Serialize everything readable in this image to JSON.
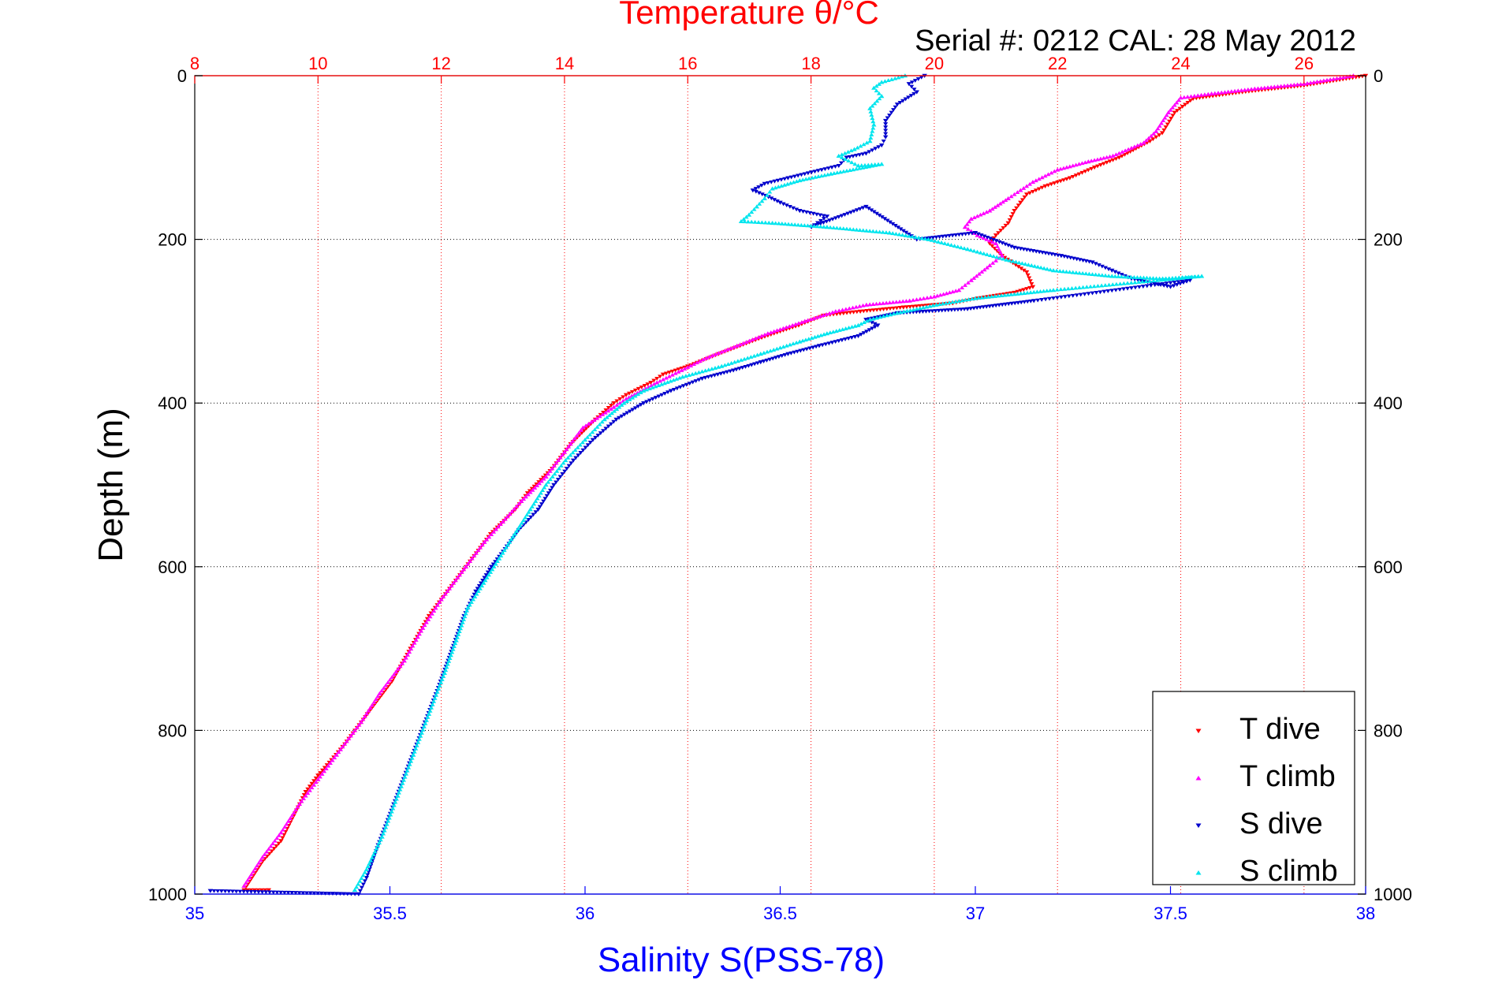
{
  "chart_data": {
    "type": "scatter",
    "title": "Temperature θ/°C",
    "subtitle": "Serial #: 0212  CAL: 28 May 2012",
    "xlabel": "Salinity S(PSS-78)",
    "ylabel": "Depth (m)",
    "x_top_label": "Temperature θ/°C",
    "salinity_range": [
      35,
      38
    ],
    "temperature_range": [
      8,
      27
    ],
    "depth_range": [
      0,
      1000
    ],
    "depth_axis_reversed": true,
    "salinity_ticks": [
      "35",
      "35.5",
      "36",
      "36.5",
      "37",
      "37.5",
      "38"
    ],
    "temperature_ticks": [
      "8",
      "10",
      "12",
      "14",
      "16",
      "18",
      "20",
      "22",
      "24",
      "26"
    ],
    "depth_ticks": [
      "0",
      "200",
      "400",
      "600",
      "800",
      "1000"
    ],
    "grid": true,
    "legend_position": "bottom-right",
    "colors": {
      "temperature_axis": "#ff0000",
      "salinity_axis": "#0000ff",
      "grid": "#000000",
      "t_dive": "#ff0000",
      "t_climb": "#ff00ff",
      "s_dive": "#0000cc",
      "s_climb": "#00e5ee"
    },
    "series": [
      {
        "name": "T dive",
        "axis": "temperature",
        "color": "#ff0000",
        "marker": "triangle-down",
        "points": [
          [
            27.0,
            0
          ],
          [
            26.0,
            12
          ],
          [
            25.0,
            20
          ],
          [
            24.2,
            28
          ],
          [
            23.9,
            45
          ],
          [
            23.7,
            70
          ],
          [
            23.5,
            80
          ],
          [
            23.0,
            100
          ],
          [
            22.6,
            112
          ],
          [
            22.2,
            125
          ],
          [
            21.8,
            135
          ],
          [
            21.5,
            145
          ],
          [
            21.4,
            155
          ],
          [
            21.3,
            165
          ],
          [
            21.2,
            180
          ],
          [
            21.0,
            195
          ],
          [
            20.9,
            205
          ],
          [
            21.1,
            220
          ],
          [
            21.5,
            240
          ],
          [
            21.6,
            258
          ],
          [
            21.3,
            265
          ],
          [
            20.7,
            272
          ],
          [
            20.3,
            278
          ],
          [
            19.5,
            283
          ],
          [
            18.8,
            288
          ],
          [
            18.2,
            293
          ],
          [
            17.8,
            305
          ],
          [
            17.2,
            320
          ],
          [
            16.5,
            340
          ],
          [
            16.0,
            355
          ],
          [
            15.6,
            365
          ],
          [
            15.4,
            375
          ],
          [
            15.0,
            390
          ],
          [
            14.8,
            400
          ],
          [
            14.5,
            420
          ],
          [
            14.1,
            450
          ],
          [
            13.8,
            480
          ],
          [
            13.4,
            510
          ],
          [
            13.2,
            530
          ],
          [
            12.8,
            560
          ],
          [
            12.5,
            590
          ],
          [
            12.1,
            630
          ],
          [
            11.8,
            660
          ],
          [
            11.5,
            700
          ],
          [
            11.2,
            740
          ],
          [
            10.8,
            780
          ],
          [
            10.4,
            820
          ],
          [
            10.0,
            855
          ],
          [
            9.8,
            875
          ],
          [
            9.6,
            905
          ],
          [
            9.4,
            935
          ],
          [
            9.1,
            960
          ],
          [
            8.8,
            995
          ],
          [
            9.2,
            995
          ]
        ]
      },
      {
        "name": "T climb",
        "axis": "temperature",
        "color": "#ff00ff",
        "marker": "triangle-up",
        "points": [
          [
            26.8,
            0
          ],
          [
            26.0,
            10
          ],
          [
            25.2,
            16
          ],
          [
            24.5,
            22
          ],
          [
            24.0,
            27
          ],
          [
            23.8,
            45
          ],
          [
            23.6,
            68
          ],
          [
            23.4,
            82
          ],
          [
            22.9,
            98
          ],
          [
            22.5,
            105
          ],
          [
            22.0,
            115
          ],
          [
            21.6,
            130
          ],
          [
            21.4,
            140
          ],
          [
            21.2,
            150
          ],
          [
            20.9,
            165
          ],
          [
            20.6,
            175
          ],
          [
            20.5,
            185
          ],
          [
            20.7,
            195
          ],
          [
            21.0,
            205
          ],
          [
            21.1,
            220
          ],
          [
            20.9,
            232
          ],
          [
            20.6,
            250
          ],
          [
            20.4,
            262
          ],
          [
            20.0,
            270
          ],
          [
            19.6,
            275
          ],
          [
            18.9,
            280
          ],
          [
            18.4,
            288
          ],
          [
            17.9,
            300
          ],
          [
            17.3,
            315
          ],
          [
            16.8,
            330
          ],
          [
            16.3,
            345
          ],
          [
            15.9,
            360
          ],
          [
            15.5,
            375
          ],
          [
            15.0,
            395
          ],
          [
            14.8,
            405
          ],
          [
            14.3,
            430
          ],
          [
            14.0,
            460
          ],
          [
            13.7,
            490
          ],
          [
            13.3,
            520
          ],
          [
            13.0,
            545
          ],
          [
            12.7,
            570
          ],
          [
            12.4,
            600
          ],
          [
            12.0,
            640
          ],
          [
            11.7,
            675
          ],
          [
            11.4,
            715
          ],
          [
            11.0,
            755
          ],
          [
            10.7,
            790
          ],
          [
            10.3,
            830
          ],
          [
            10.0,
            860
          ],
          [
            9.7,
            890
          ],
          [
            9.4,
            925
          ],
          [
            9.1,
            955
          ],
          [
            8.8,
            990
          ]
        ]
      },
      {
        "name": "S dive",
        "axis": "salinity",
        "color": "#0000cc",
        "marker": "triangle-down",
        "points": [
          [
            36.87,
            0
          ],
          [
            36.83,
            10
          ],
          [
            36.85,
            20
          ],
          [
            36.8,
            35
          ],
          [
            36.77,
            55
          ],
          [
            36.77,
            75
          ],
          [
            36.76,
            85
          ],
          [
            36.72,
            95
          ],
          [
            36.67,
            100
          ],
          [
            36.65,
            110
          ],
          [
            36.58,
            118
          ],
          [
            36.52,
            125
          ],
          [
            36.46,
            132
          ],
          [
            36.43,
            140
          ],
          [
            36.47,
            148
          ],
          [
            36.5,
            155
          ],
          [
            36.55,
            165
          ],
          [
            36.62,
            172
          ],
          [
            36.58,
            185
          ],
          [
            36.72,
            160
          ],
          [
            36.85,
            200
          ],
          [
            37.0,
            192
          ],
          [
            37.1,
            210
          ],
          [
            37.22,
            220
          ],
          [
            37.3,
            228
          ],
          [
            37.35,
            238
          ],
          [
            37.4,
            248
          ],
          [
            37.5,
            258
          ],
          [
            37.55,
            250
          ],
          [
            37.15,
            275
          ],
          [
            36.98,
            285
          ],
          [
            36.8,
            290
          ],
          [
            36.72,
            298
          ],
          [
            36.75,
            305
          ],
          [
            36.7,
            318
          ],
          [
            36.6,
            330
          ],
          [
            36.52,
            340
          ],
          [
            36.45,
            350
          ],
          [
            36.38,
            360
          ],
          [
            36.3,
            370
          ],
          [
            36.22,
            385
          ],
          [
            36.15,
            400
          ],
          [
            36.08,
            420
          ],
          [
            36.02,
            445
          ],
          [
            35.97,
            470
          ],
          [
            35.92,
            500
          ],
          [
            35.88,
            530
          ],
          [
            35.83,
            555
          ],
          [
            35.8,
            575
          ],
          [
            35.76,
            600
          ],
          [
            35.72,
            630
          ],
          [
            35.69,
            660
          ],
          [
            35.66,
            700
          ],
          [
            35.63,
            740
          ],
          [
            35.59,
            790
          ],
          [
            35.55,
            840
          ],
          [
            35.51,
            890
          ],
          [
            35.47,
            940
          ],
          [
            35.44,
            980
          ],
          [
            35.42,
            1000
          ],
          [
            35.04,
            996
          ]
        ]
      },
      {
        "name": "S climb",
        "axis": "salinity",
        "color": "#00e5ee",
        "marker": "triangle-up",
        "points": [
          [
            36.82,
            0
          ],
          [
            36.76,
            8
          ],
          [
            36.74,
            15
          ],
          [
            36.76,
            25
          ],
          [
            36.73,
            40
          ],
          [
            36.74,
            60
          ],
          [
            36.73,
            80
          ],
          [
            36.69,
            90
          ],
          [
            36.65,
            98
          ],
          [
            36.7,
            110
          ],
          [
            36.76,
            108
          ],
          [
            36.63,
            120
          ],
          [
            36.55,
            128
          ],
          [
            36.48,
            138
          ],
          [
            36.46,
            150
          ],
          [
            36.44,
            160
          ],
          [
            36.42,
            170
          ],
          [
            36.4,
            178
          ],
          [
            36.48,
            180
          ],
          [
            36.62,
            185
          ],
          [
            36.78,
            192
          ],
          [
            36.88,
            200
          ],
          [
            36.98,
            212
          ],
          [
            37.08,
            225
          ],
          [
            37.2,
            238
          ],
          [
            37.35,
            245
          ],
          [
            37.48,
            248
          ],
          [
            37.58,
            245
          ],
          [
            37.2,
            262
          ],
          [
            37.0,
            272
          ],
          [
            36.9,
            280
          ],
          [
            36.8,
            290
          ],
          [
            36.73,
            298
          ],
          [
            36.7,
            305
          ],
          [
            36.62,
            315
          ],
          [
            36.55,
            325
          ],
          [
            36.45,
            340
          ],
          [
            36.35,
            355
          ],
          [
            36.25,
            368
          ],
          [
            36.15,
            385
          ],
          [
            36.1,
            400
          ],
          [
            36.05,
            420
          ],
          [
            36.0,
            445
          ],
          [
            35.95,
            470
          ],
          [
            35.9,
            500
          ],
          [
            35.86,
            530
          ],
          [
            35.82,
            560
          ],
          [
            35.78,
            590
          ],
          [
            35.74,
            620
          ],
          [
            35.7,
            650
          ],
          [
            35.67,
            690
          ],
          [
            35.64,
            730
          ],
          [
            35.6,
            780
          ],
          [
            35.56,
            830
          ],
          [
            35.52,
            880
          ],
          [
            35.48,
            930
          ],
          [
            35.44,
            970
          ],
          [
            35.41,
            995
          ]
        ]
      }
    ]
  }
}
